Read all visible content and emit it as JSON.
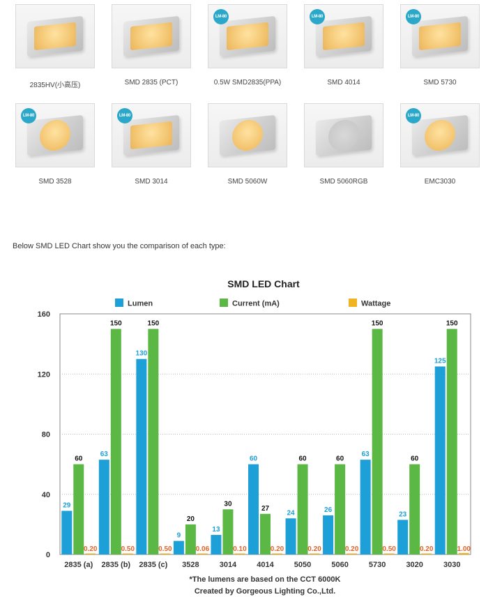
{
  "products": [
    [
      {
        "name": "2835HV(小高压)",
        "badge": "",
        "shape": "rect"
      },
      {
        "name": "SMD 2835 (PCT)",
        "badge": "",
        "shape": "rect"
      },
      {
        "name": "0.5W SMD2835(PPA)",
        "badge": "LM-80",
        "shape": "rect"
      },
      {
        "name": "SMD 4014",
        "badge": "LM-80",
        "shape": "rect"
      },
      {
        "name": "SMD 5730",
        "badge": "LM-80",
        "shape": "rect"
      }
    ],
    [
      {
        "name": "SMD 3528",
        "badge": "LM-80",
        "shape": "round"
      },
      {
        "name": "SMD 3014",
        "badge": "LM-80",
        "shape": "rect"
      },
      {
        "name": "SMD 5060W",
        "badge": "",
        "shape": "round"
      },
      {
        "name": "SMD 5060RGB",
        "badge": "",
        "shape": "rgb"
      },
      {
        "name": "EMC3030",
        "badge": "LM-80",
        "shape": "round"
      }
    ]
  ],
  "intro_text": "Below SMD LED Chart show you the comparison of each type:",
  "chart_data": {
    "type": "bar",
    "title": "SMD LED Chart",
    "categories": [
      "2835 (a)",
      "2835 (b)",
      "2835 (c)",
      "3528",
      "3014",
      "4014",
      "5050",
      "5060",
      "5730",
      "3020",
      "3030"
    ],
    "series": [
      {
        "name": "Lumen",
        "color": "#1da0d8",
        "label_color": "#1da0d8",
        "values": [
          29,
          63,
          130,
          9,
          13,
          60,
          24,
          26,
          63,
          23,
          125
        ]
      },
      {
        "name": "Current (mA)",
        "color": "#5cb845",
        "label_color": "#111111",
        "values": [
          60,
          150,
          150,
          20,
          30,
          27,
          60,
          60,
          150,
          60,
          150
        ]
      },
      {
        "name": "Wattage",
        "color": "#f0b323",
        "label_color": "#e2632a",
        "values": [
          0.2,
          0.5,
          0.5,
          0.06,
          0.1,
          0.2,
          0.2,
          0.2,
          0.5,
          0.2,
          1.0
        ],
        "labels": [
          "0.20",
          "0.50",
          "0.50",
          "0.06",
          "0.10",
          "0.20",
          "0.20",
          "0.20",
          "0.50",
          "0.20",
          "1.00"
        ]
      }
    ],
    "ylim": [
      0,
      160
    ],
    "yticks": [
      "0",
      "40",
      "80",
      "120",
      "160"
    ],
    "grid": true,
    "legend": "top",
    "notes": [
      "*The lumens are based on the CCT 6000K",
      "Created by Gorgeous Lighting Co.,Ltd."
    ]
  }
}
